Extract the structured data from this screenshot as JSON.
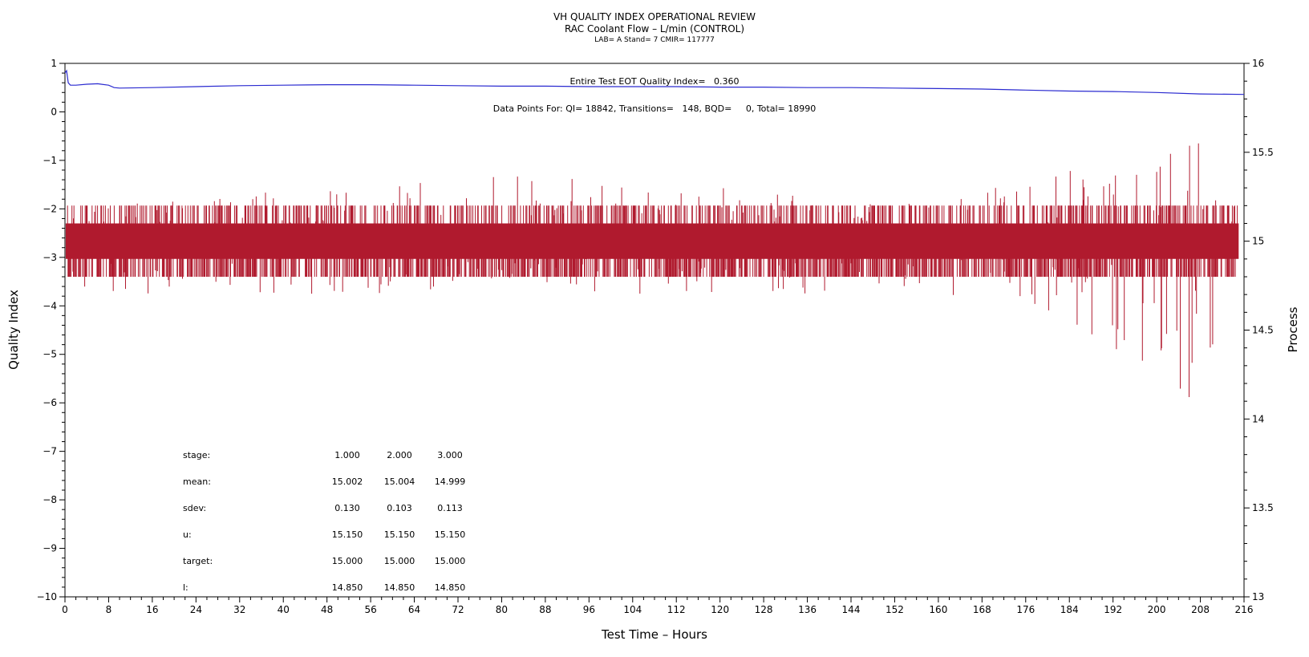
{
  "chart_data": {
    "type": "line",
    "title": "VH QUALITY INDEX OPERATIONAL REVIEW",
    "subtitle": "RAC Coolant Flow – L/min (CONTROL)",
    "subtitle2": "LAB= A Stand= 7 CMIR= 117777",
    "xlabel": "Test Time – Hours",
    "ylabel": "Quality Index",
    "y2label": "Process",
    "xlim": [
      0,
      216
    ],
    "ylim": [
      -10,
      1
    ],
    "y2lim": [
      13,
      16
    ],
    "x_ticks": [
      0,
      8,
      16,
      24,
      32,
      40,
      48,
      56,
      64,
      72,
      80,
      88,
      96,
      104,
      112,
      120,
      128,
      136,
      144,
      152,
      160,
      168,
      176,
      184,
      192,
      200,
      208,
      216
    ],
    "y_ticks": [
      1,
      0,
      -1,
      -2,
      -3,
      -4,
      -5,
      -6,
      -7,
      -8,
      -9,
      -10
    ],
    "y2_ticks": [
      13,
      13.5,
      14,
      14.5,
      15,
      15.5,
      16
    ],
    "y2_tick_labels": [
      "13",
      "13.5",
      "14",
      "14.5",
      "15",
      "15.5",
      "16"
    ],
    "grid": false,
    "annotations": {
      "qi_text": "Entire Test EOT Quality Index=   0.360",
      "points_text": "Data Points For: QI= 18842, Transitions=   148, BQD=     0, Total= 18990"
    },
    "series": [
      {
        "axis": "left",
        "color": "#2a2ad0",
        "x": [
          0,
          0.3,
          0.6,
          1,
          2,
          4,
          6,
          8,
          9,
          10,
          16,
          24,
          32,
          40,
          48,
          56,
          64,
          72,
          80,
          88,
          96,
          104,
          112,
          120,
          128,
          136,
          144,
          152,
          160,
          168,
          176,
          184,
          192,
          200,
          208,
          216
        ],
        "values": [
          0.8,
          0.85,
          0.6,
          0.55,
          0.55,
          0.57,
          0.58,
          0.55,
          0.5,
          0.49,
          0.5,
          0.52,
          0.54,
          0.55,
          0.56,
          0.56,
          0.55,
          0.54,
          0.53,
          0.53,
          0.52,
          0.52,
          0.52,
          0.51,
          0.51,
          0.5,
          0.5,
          0.49,
          0.48,
          0.47,
          0.45,
          0.43,
          0.42,
          0.4,
          0.37,
          0.36
        ]
      },
      {
        "axis": "right",
        "color": "#b01a2e",
        "x_range": [
          0.2,
          215
        ],
        "base_low": 14.9,
        "base_high": 15.1,
        "typical_range": [
          14.8,
          15.2
        ],
        "envelope_x": [
          0,
          8,
          40,
          72,
          120,
          160,
          168,
          176,
          184,
          192,
          200,
          208,
          212,
          215
        ],
        "envelope_low": [
          14.6,
          14.7,
          14.7,
          14.7,
          14.7,
          14.7,
          14.65,
          14.65,
          14.5,
          14.4,
          14.2,
          14.0,
          14.6,
          14.8
        ],
        "envelope_high": [
          15.2,
          15.2,
          15.3,
          15.4,
          15.3,
          15.2,
          15.3,
          15.3,
          15.4,
          15.5,
          15.5,
          15.6,
          15.4,
          15.2
        ]
      }
    ],
    "stats_table": {
      "rows": [
        {
          "label": "stage:",
          "values": [
            "1.000",
            "2.000",
            "3.000"
          ]
        },
        {
          "label": "mean:",
          "values": [
            "15.002",
            "15.004",
            "14.999"
          ]
        },
        {
          "label": "sdev:",
          "values": [
            "0.130",
            "0.103",
            "0.113"
          ]
        },
        {
          "label": "u:",
          "values": [
            "15.150",
            "15.150",
            "15.150"
          ]
        },
        {
          "label": "target:",
          "values": [
            "15.000",
            "15.000",
            "15.000"
          ]
        },
        {
          "label": "l:",
          "values": [
            "14.850",
            "14.850",
            "14.850"
          ]
        }
      ]
    }
  }
}
